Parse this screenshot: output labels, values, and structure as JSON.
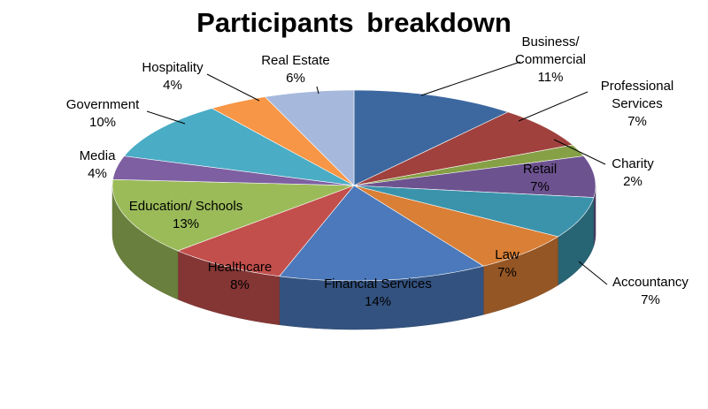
{
  "chart_data": {
    "type": "pie",
    "title": "Participants  breakdown",
    "categories": [
      "Business/ Commercial",
      "Professional Services",
      "Charity",
      "Retail",
      "Accountancy",
      "Law",
      "Financial Services",
      "Healthcare",
      "Education/ Schools",
      "Media",
      "Government",
      "Hospitality",
      "Real Estate"
    ],
    "values": [
      11,
      7,
      2,
      7,
      7,
      7,
      14,
      8,
      13,
      4,
      10,
      4,
      6
    ],
    "colors": [
      "#3D689F",
      "#A0413E",
      "#86A046",
      "#6D5290",
      "#3A93AB",
      "#D97F36",
      "#4B79BB",
      "#C24F4C",
      "#9BBB59",
      "#7D5FA2",
      "#4AACC5",
      "#F79646",
      "#A6B8DB"
    ],
    "data_labels": [
      {
        "name": "Business/",
        "name2": "Commercial",
        "pct": "11%"
      },
      {
        "name": "Professional",
        "name2": "Services",
        "pct": "7%"
      },
      {
        "name": "Charity",
        "name2": "",
        "pct": "2%"
      },
      {
        "name": "Retail",
        "name2": "",
        "pct": "7%"
      },
      {
        "name": "Accountancy",
        "name2": "",
        "pct": "7%"
      },
      {
        "name": "Law",
        "name2": "",
        "pct": "7%"
      },
      {
        "name": "Financial Services",
        "name2": "",
        "pct": "14%"
      },
      {
        "name": "Healthcare",
        "name2": "",
        "pct": "8%"
      },
      {
        "name": "Education/ Schools",
        "name2": "",
        "pct": "13%"
      },
      {
        "name": "Media",
        "name2": "",
        "pct": "4%"
      },
      {
        "name": "Government",
        "name2": "",
        "pct": "10%"
      },
      {
        "name": "Hospitality",
        "name2": "",
        "pct": "4%"
      },
      {
        "name": "Real Estate",
        "name2": "",
        "pct": "6%"
      }
    ],
    "legend": "none",
    "style": "3d-exploded-none"
  }
}
